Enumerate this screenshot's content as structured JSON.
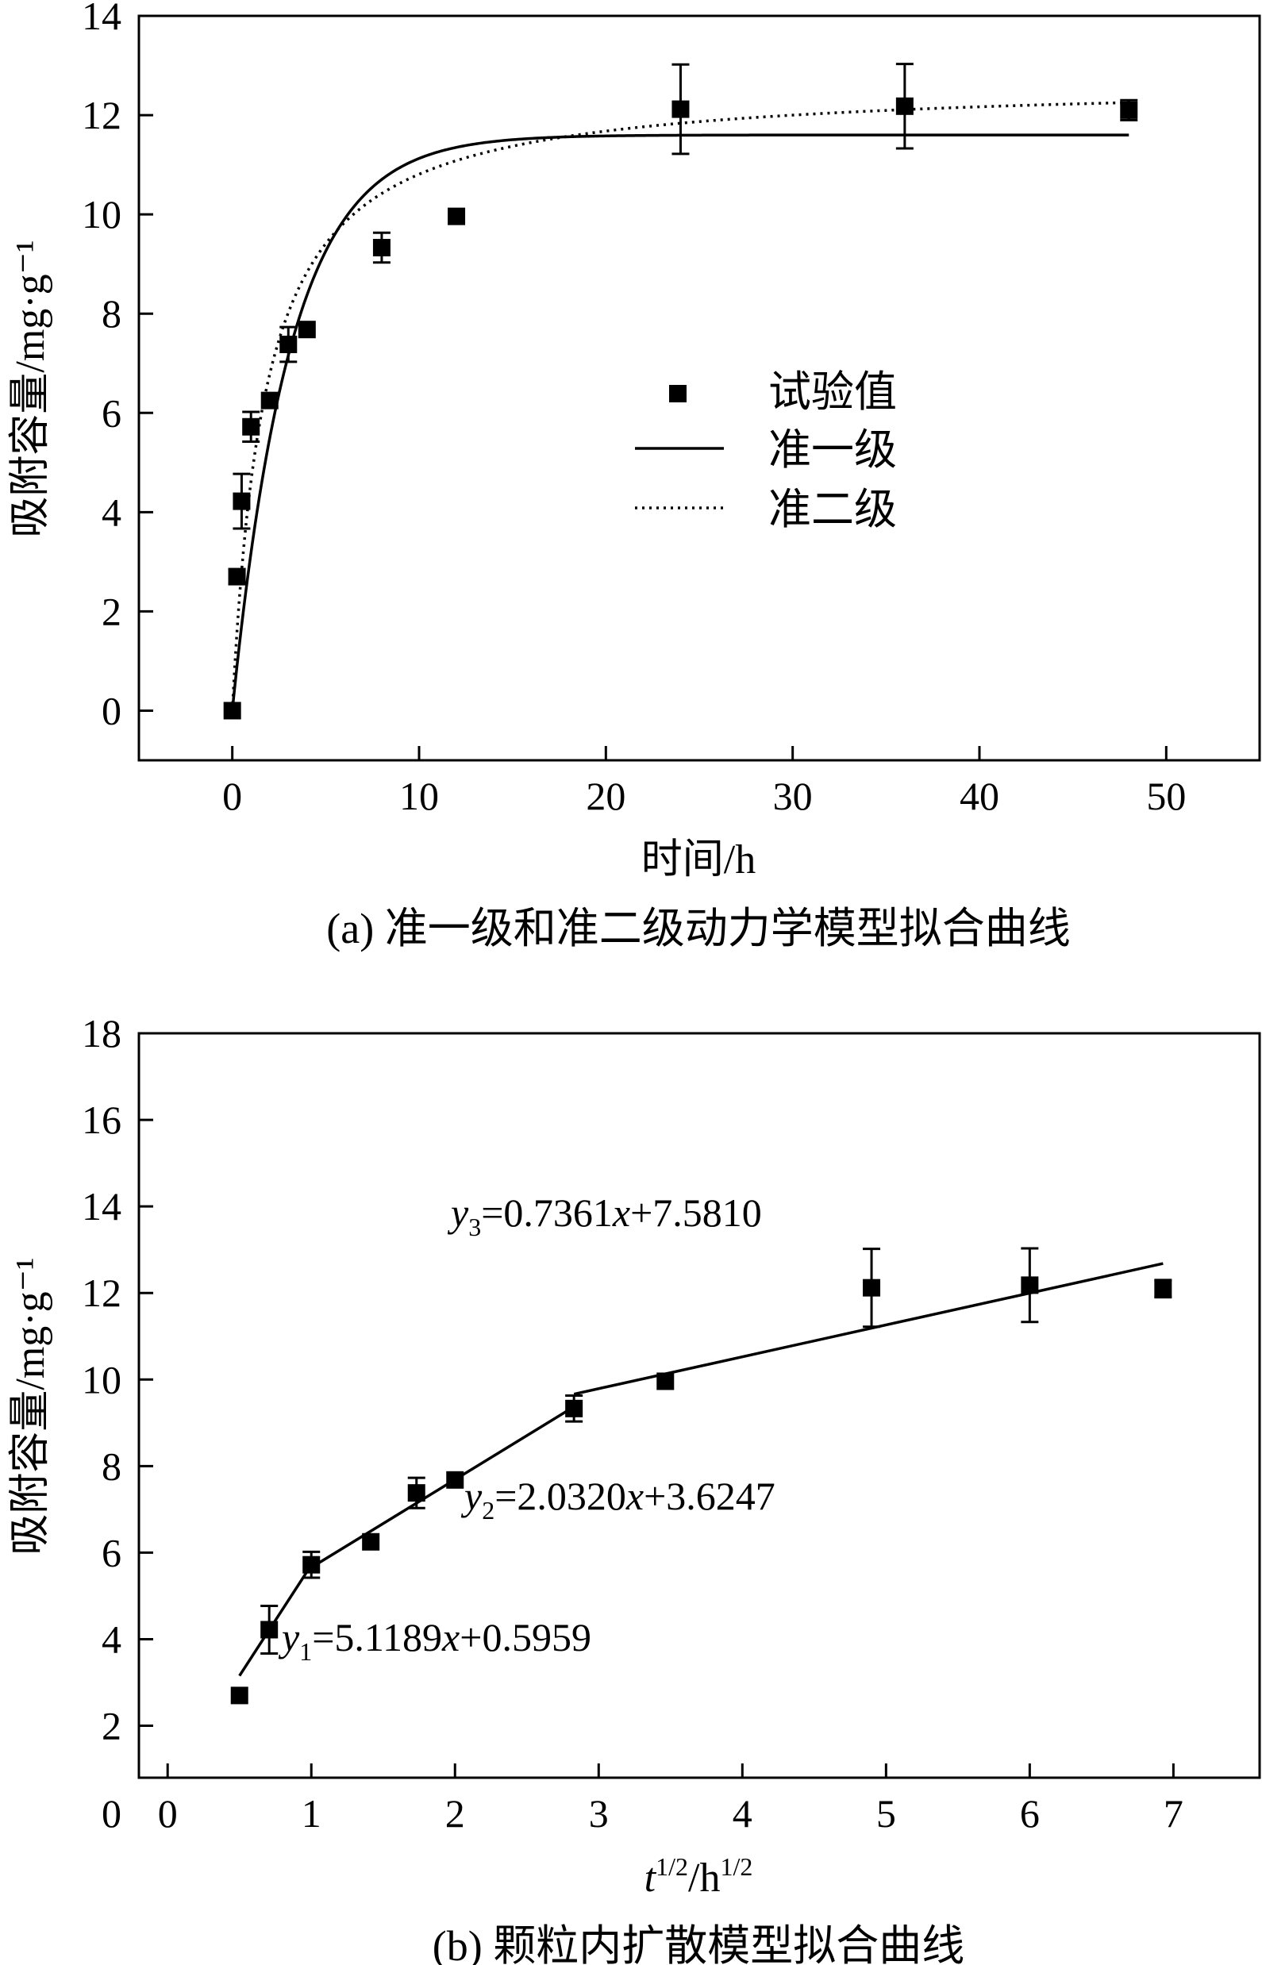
{
  "chart_data": [
    {
      "type": "scatter",
      "caption": "(a) 准一级和准二级动力学模型拟合曲线",
      "xlabel": "时间/h",
      "ylabel": "吸附容量/mg·g⁻¹",
      "xlim": [
        -5,
        55
      ],
      "ylim": [
        -1,
        14
      ],
      "xticks": [
        0,
        10,
        20,
        30,
        40,
        50
      ],
      "yticks": [
        0,
        2,
        4,
        6,
        8,
        10,
        12,
        14
      ],
      "legend": {
        "position": "center-right",
        "entries": [
          {
            "label": "试验值",
            "style": "square-marker"
          },
          {
            "label": "准一级",
            "style": "solid-line"
          },
          {
            "label": "准二级",
            "style": "dotted-line"
          }
        ]
      },
      "series": [
        {
          "name": "试验值",
          "kind": "points",
          "x": [
            0,
            0.25,
            0.5,
            1,
            2,
            3,
            4,
            8,
            12,
            24,
            36,
            48
          ],
          "y": [
            0,
            2.7,
            4.22,
            5.72,
            6.25,
            7.38,
            7.68,
            9.33,
            9.96,
            12.12,
            12.18,
            12.1
          ],
          "err": [
            0,
            0.15,
            0.55,
            0.3,
            0,
            0.35,
            0,
            0.3,
            0,
            0.9,
            0.85,
            0.2
          ]
        },
        {
          "name": "准一级",
          "kind": "curve",
          "model": "pfo",
          "params": {
            "qe": 11.6,
            "k": 0.32
          },
          "x_range": [
            0,
            48
          ]
        },
        {
          "name": "准二级",
          "kind": "curve",
          "model": "pso",
          "params": {
            "qe": 12.7,
            "k": 0.045
          },
          "x_range": [
            0,
            48
          ]
        }
      ]
    },
    {
      "type": "scatter",
      "caption": "(b) 颗粒内扩散模型拟合曲线",
      "xlabel_main": "t",
      "xlabel_sup1": "1/2",
      "xlabel_mid": "/h",
      "xlabel_sup2": "1/2",
      "ylabel": "吸附容量/mg·g⁻¹",
      "xlim": [
        -0.2,
        7.6
      ],
      "ylim": [
        0.8,
        18
      ],
      "xticks": [
        0,
        1,
        2,
        3,
        4,
        5,
        6,
        7
      ],
      "yticks": [
        2,
        4,
        6,
        8,
        10,
        12,
        14,
        16,
        18
      ],
      "y_zero_label": "0",
      "series": [
        {
          "name": "试验值",
          "kind": "points",
          "x": [
            0.5,
            0.707,
            1.0,
            1.414,
            1.732,
            2.0,
            2.828,
            3.464,
            4.899,
            6.0,
            6.928
          ],
          "y": [
            2.7,
            4.22,
            5.72,
            6.25,
            7.38,
            7.68,
            9.33,
            9.96,
            12.12,
            12.18,
            12.1
          ],
          "err": [
            0,
            0.55,
            0.3,
            0,
            0.35,
            0,
            0.3,
            0,
            0.9,
            0.85,
            0.2
          ]
        },
        {
          "name": "y1",
          "kind": "segment",
          "slope": 5.1189,
          "intercept": 0.5959,
          "x_range": [
            0.5,
            1.0
          ]
        },
        {
          "name": "y2",
          "kind": "segment",
          "slope": 2.032,
          "intercept": 3.6247,
          "x_range": [
            1.0,
            2.828
          ]
        },
        {
          "name": "y3",
          "kind": "segment",
          "slope": 0.7361,
          "intercept": 7.581,
          "x_range": [
            2.828,
            6.928
          ]
        }
      ],
      "annotations": [
        {
          "var": "y",
          "sub": "1",
          "text": "=5.1189",
          "x_var": "x",
          "rest": "+0.5959"
        },
        {
          "var": "y",
          "sub": "2",
          "text": "=2.0320",
          "x_var": "x",
          "rest": "+3.6247"
        },
        {
          "var": "y",
          "sub": "3",
          "text": "=0.7361",
          "x_var": "x",
          "rest": "+7.5810"
        }
      ]
    }
  ]
}
